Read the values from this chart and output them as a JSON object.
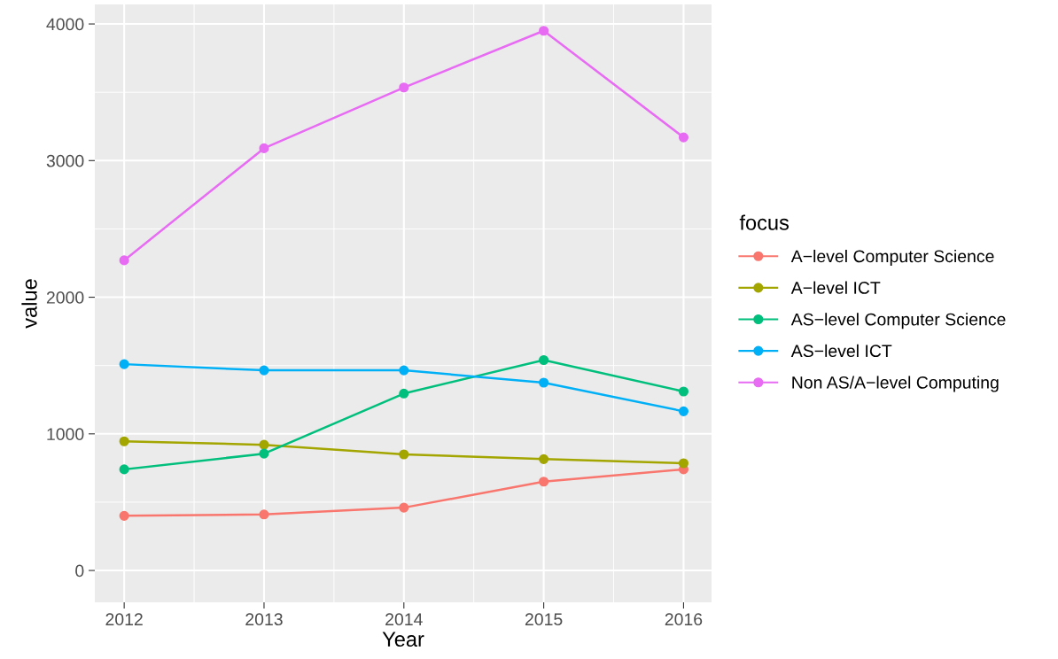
{
  "chart_data": {
    "type": "line",
    "xlabel": "Year",
    "ylabel": "value",
    "legend_title": "focus",
    "x": [
      2012,
      2013,
      2014,
      2015,
      2016
    ],
    "series": [
      {
        "name": "A−level Computer Science",
        "color": "#f8766d",
        "values": [
          400,
          410,
          460,
          650,
          740
        ]
      },
      {
        "name": "A−level ICT",
        "color": "#a3a500",
        "values": [
          945,
          920,
          850,
          815,
          785
        ]
      },
      {
        "name": "AS−level Computer Science",
        "color": "#00bf7d",
        "values": [
          740,
          855,
          1295,
          1540,
          1310
        ]
      },
      {
        "name": "AS−level ICT",
        "color": "#00b0f6",
        "values": [
          1510,
          1465,
          1465,
          1375,
          1165
        ]
      },
      {
        "name": "Non AS/A−level Computing",
        "color": "#e76bf3",
        "values": [
          2270,
          3090,
          3535,
          3950,
          3170
        ]
      }
    ],
    "xlim": [
      2011.79,
      2016.2
    ],
    "xticks": [
      2012,
      2013,
      2014,
      2015,
      2016
    ],
    "ylim": [
      -233,
      4143
    ],
    "yticks": [
      0,
      1000,
      2000,
      3000,
      4000
    ],
    "grid": true,
    "legend": "right",
    "marker": "circle",
    "line_style": "solid"
  }
}
